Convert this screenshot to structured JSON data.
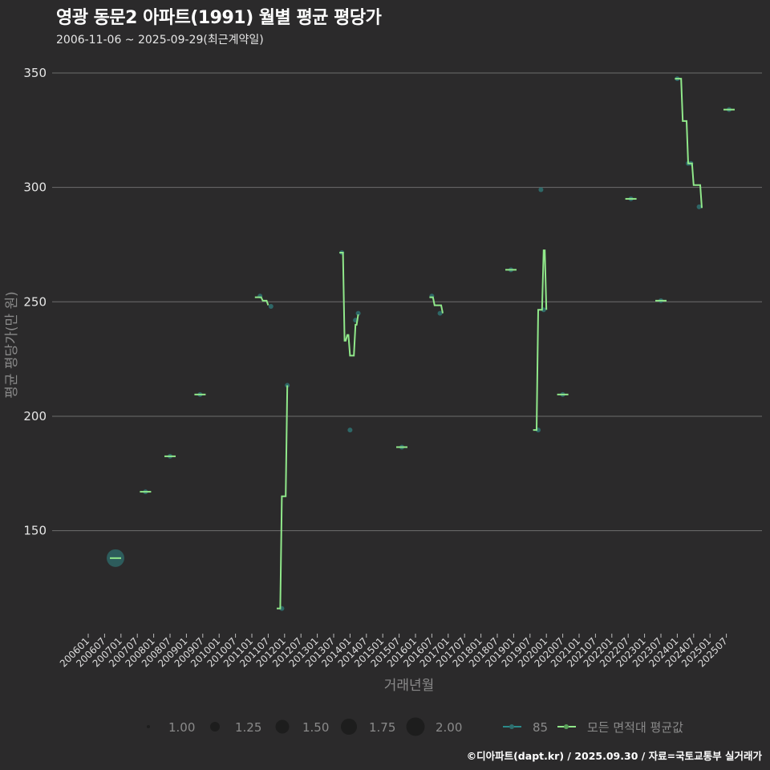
{
  "header": {
    "title": "영광 동문2 아파트(1991) 월별 평균 평당가",
    "subtitle": "2006-11-06 ~ 2025-09-29(최근계약일)"
  },
  "caption": "©디아파트(dapt.kr) / 2025.09.30 / 자료=국토교통부 실거래가",
  "colors": {
    "background": "#2b2a2b",
    "grid": "#6e6e6e",
    "line": "#90e88a",
    "point": "#2f6e6e"
  },
  "chart_data": {
    "type": "line",
    "title": "영광 동문2 아파트(1991) 월별 평균 평당가",
    "subtitle": "2006-11-06 ~ 2025-09-29(최근계약일)",
    "xlabel": "거래년월",
    "ylabel": "평균 평당가(만 원)",
    "ylim": [
      105,
      357
    ],
    "yticks": [
      150,
      200,
      250,
      300,
      350
    ],
    "xticks": [
      "200601",
      "200607",
      "200701",
      "200707",
      "200801",
      "200807",
      "200901",
      "200907",
      "201001",
      "201007",
      "201101",
      "201107",
      "201201",
      "201207",
      "201301",
      "201307",
      "201401",
      "201407",
      "201501",
      "201507",
      "201601",
      "201607",
      "201701",
      "201707",
      "201801",
      "201807",
      "201901",
      "201907",
      "202001",
      "202007",
      "202101",
      "202107",
      "202201",
      "202207",
      "202301",
      "202307",
      "202401",
      "202407",
      "202501",
      "202507"
    ],
    "grid": true,
    "legend": {
      "size_title": "",
      "sizes": [
        "1.00",
        "1.25",
        "1.50",
        "1.75",
        "2.00"
      ],
      "series": [
        "85",
        "모든 면적대 평균값"
      ]
    },
    "series": [
      {
        "name": "모든 면적대 평균값",
        "points": [
          {
            "ym": "200611",
            "v": 138
          },
          {
            "ym": "200710",
            "v": 167
          },
          {
            "ym": "200807",
            "v": 182.5
          },
          {
            "ym": "200906",
            "v": 209.5
          },
          {
            "ym": "201103",
            "v": 252
          },
          {
            "ym": "201105",
            "v": 250.5
          },
          {
            "ym": "201107",
            "v": 248.5
          },
          {
            "ym": "201111",
            "v": 116
          },
          {
            "ym": "201112",
            "v": 165
          },
          {
            "ym": "201202",
            "v": 213.5
          },
          {
            "ym": "201310",
            "v": 271.5
          },
          {
            "ym": "201311",
            "v": 233
          },
          {
            "ym": "201312",
            "v": 235.5
          },
          {
            "ym": "201401",
            "v": 226.5
          },
          {
            "ym": "201403",
            "v": 240
          },
          {
            "ym": "201404",
            "v": 244.5
          },
          {
            "ym": "201508",
            "v": 186.5
          },
          {
            "ym": "201607",
            "v": 252
          },
          {
            "ym": "201608",
            "v": 248.5
          },
          {
            "ym": "201611",
            "v": 245
          },
          {
            "ym": "201812",
            "v": 264
          },
          {
            "ym": "201909",
            "v": 194
          },
          {
            "ym": "201910",
            "v": 246.5
          },
          {
            "ym": "201912",
            "v": 272.5
          },
          {
            "ym": "202001",
            "v": 246.5
          },
          {
            "ym": "202007",
            "v": 209.5
          },
          {
            "ym": "202208",
            "v": 295
          },
          {
            "ym": "202307",
            "v": 250.5
          },
          {
            "ym": "202401",
            "v": 347.5
          },
          {
            "ym": "202403",
            "v": 329
          },
          {
            "ym": "202405",
            "v": 310.5
          },
          {
            "ym": "202407",
            "v": 301
          },
          {
            "ym": "202410",
            "v": 291
          },
          {
            "ym": "202508",
            "v": 334
          }
        ]
      },
      {
        "name": "85",
        "points": [
          {
            "ym": "200611",
            "v": 138,
            "size": 2.0
          },
          {
            "ym": "200710",
            "v": 167,
            "size": 1.0
          },
          {
            "ym": "200807",
            "v": 182.5,
            "size": 1.0
          },
          {
            "ym": "200906",
            "v": 209.5,
            "size": 1.0
          },
          {
            "ym": "201104",
            "v": 252.5,
            "size": 1.0
          },
          {
            "ym": "201108",
            "v": 248,
            "size": 1.0
          },
          {
            "ym": "201112",
            "v": 116,
            "size": 1.0
          },
          {
            "ym": "201202",
            "v": 213.5,
            "size": 1.0
          },
          {
            "ym": "201310",
            "v": 271.5,
            "size": 1.0
          },
          {
            "ym": "201401",
            "v": 194,
            "size": 1.0
          },
          {
            "ym": "201403",
            "v": 242,
            "size": 1.0
          },
          {
            "ym": "201404",
            "v": 245,
            "size": 1.0
          },
          {
            "ym": "201508",
            "v": 186.5,
            "size": 1.0
          },
          {
            "ym": "201607",
            "v": 252.5,
            "size": 1.0
          },
          {
            "ym": "201610",
            "v": 245,
            "size": 1.0
          },
          {
            "ym": "201812",
            "v": 264,
            "size": 1.0
          },
          {
            "ym": "201910",
            "v": 194,
            "size": 1.0
          },
          {
            "ym": "201911",
            "v": 299,
            "size": 1.0
          },
          {
            "ym": "201912",
            "v": 246.5,
            "size": 1.0
          },
          {
            "ym": "202007",
            "v": 209.5,
            "size": 1.0
          },
          {
            "ym": "202208",
            "v": 295,
            "size": 1.0
          },
          {
            "ym": "202307",
            "v": 250.5,
            "size": 1.0
          },
          {
            "ym": "202401",
            "v": 347.5,
            "size": 1.0
          },
          {
            "ym": "202405",
            "v": 310.5,
            "size": 1.0
          },
          {
            "ym": "202406",
            "v": 310.5,
            "size": 1.0
          },
          {
            "ym": "202409",
            "v": 291.5,
            "size": 1.0
          },
          {
            "ym": "202508",
            "v": 334,
            "size": 1.0
          }
        ]
      }
    ]
  }
}
